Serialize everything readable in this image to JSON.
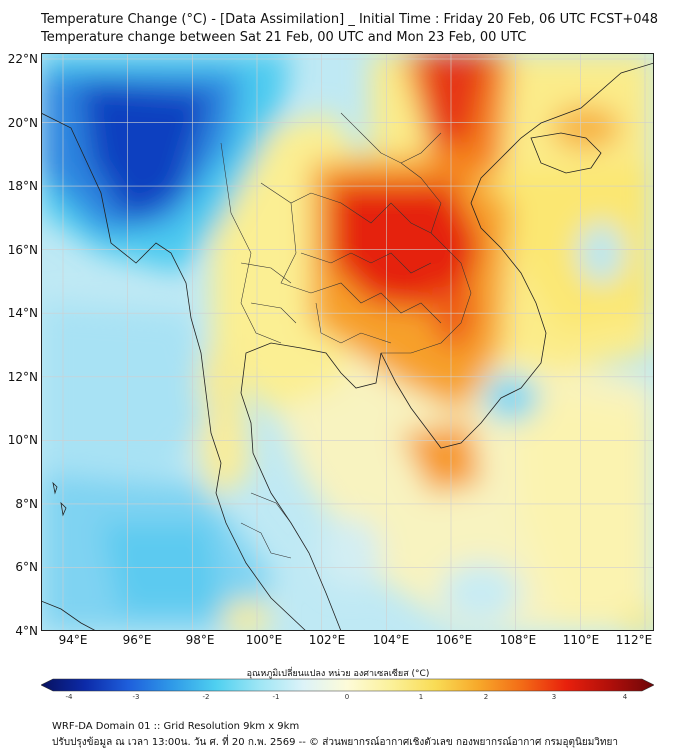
{
  "header": {
    "title_line1": "Temperature Change (°C) - [Data Assimilation] _ Initial Time : Friday 20 Feb, 06 UTC FCST+048",
    "title_line2": "Temperature change between Sat 21 Feb, 00 UTC and Mon 23 Feb, 00 UTC"
  },
  "map": {
    "lat_labels": [
      "22°N",
      "20°N",
      "18°N",
      "16°N",
      "14°N",
      "12°N",
      "10°N",
      "8°N",
      "6°N",
      "4°N"
    ],
    "lon_labels": [
      "94°E",
      "96°E",
      "98°E",
      "100°E",
      "102°E",
      "104°E",
      "106°E",
      "108°E",
      "110°E",
      "112°E"
    ]
  },
  "colorbar": {
    "label": "อุณหภูมิเปลี่ยนแปลง หน่วย องศาเซลเซียส (°C)",
    "ticks": [
      "-4",
      "-3",
      "-2",
      "-1",
      "0",
      "1",
      "2",
      "3",
      "4"
    ],
    "colors": [
      "#08115e",
      "#0c2aa8",
      "#1e5fdc",
      "#2f9ae8",
      "#4fd0f0",
      "#9fe6f5",
      "#ddf3f8",
      "#fdfbd8",
      "#fbf19a",
      "#f9dc55",
      "#f7a82a",
      "#f36a16",
      "#e8200c",
      "#b00f0a",
      "#6d0608"
    ]
  },
  "footer": {
    "line1": "WRF-DA Domain 01 :: Grid Resolution 9km x 9km",
    "line2": "ปรับปรุงข้อมูล ณ เวลา 13:00น. วัน ศ. ที่ 20 ก.พ. 2569 -- © ส่วนพยากรณ์อากาศเชิงตัวเลข กองพยากรณ์อากาศ กรมอุตุนิยมวิทยา"
  }
}
